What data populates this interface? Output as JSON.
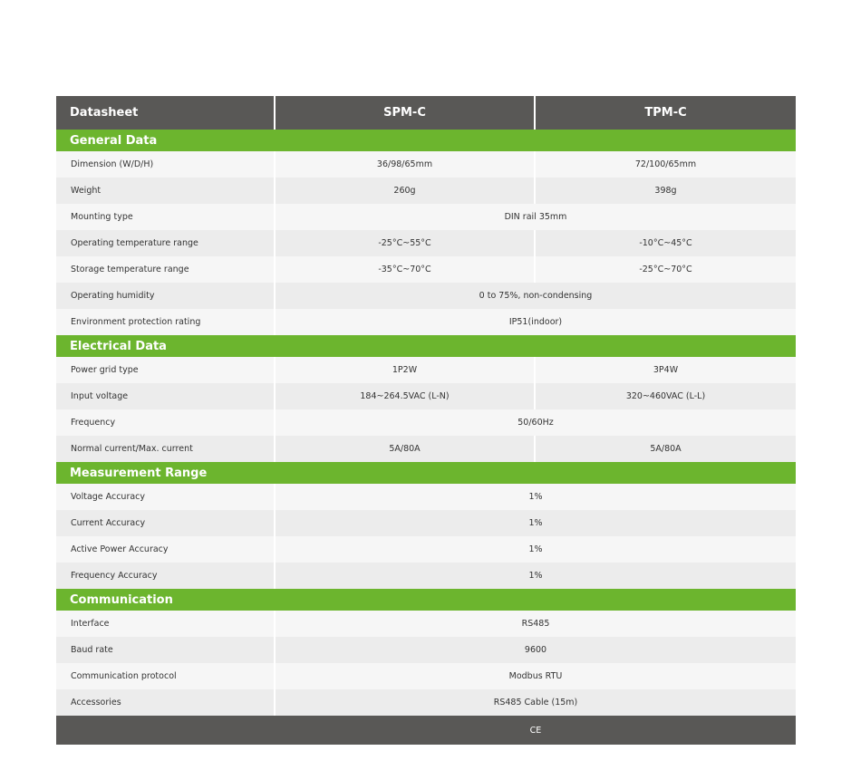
{
  "header": {
    "label": "Datasheet",
    "col1": "SPM-C",
    "col2": "TPM-C"
  },
  "colors": {
    "header": "#595856",
    "section": "#6cb52e"
  },
  "sections": [
    {
      "title": "General Data",
      "rows": [
        {
          "label": "Dimension (W/D/H)",
          "spm": "36/98/65mm",
          "tpm": "72/100/65mm"
        },
        {
          "label": "Weight",
          "spm": "260g",
          "tpm": "398g"
        },
        {
          "label": "Mounting type",
          "both": "DIN rail 35mm"
        },
        {
          "label": "Operating temperature range",
          "spm": "-25°C~55°C",
          "tpm": "-10°C~45°C"
        },
        {
          "label": "Storage temperature range",
          "spm": "-35°C~70°C",
          "tpm": "-25°C~70°C"
        },
        {
          "label": "Operating humidity",
          "both": "0 to 75%, non-condensing"
        },
        {
          "label": "Environment protection rating",
          "both": "IP51(indoor)"
        }
      ]
    },
    {
      "title": "Electrical Data",
      "rows": [
        {
          "label": "Power grid type",
          "spm": "1P2W",
          "tpm": "3P4W"
        },
        {
          "label": "Input voltage",
          "spm": "184~264.5VAC (L-N)",
          "tpm": "320~460VAC (L-L)"
        },
        {
          "label": "Frequency",
          "both": "50/60Hz"
        },
        {
          "label": "Normal current/Max. current",
          "spm": "5A/80A",
          "tpm": "5A/80A"
        }
      ]
    },
    {
      "title": "Measurement Range",
      "rows": [
        {
          "label": "Voltage Accuracy",
          "both": "1%"
        },
        {
          "label": "Current Accuracy",
          "both": "1%"
        },
        {
          "label": "Active Power Accuracy",
          "both": "1%"
        },
        {
          "label": "Frequency Accuracy",
          "both": "1%"
        }
      ]
    },
    {
      "title": "Communication",
      "rows": [
        {
          "label": "Interface",
          "both": "RS485"
        },
        {
          "label": "Baud rate",
          "both": "9600"
        },
        {
          "label": "Communication protocol",
          "both": "Modbus RTU"
        },
        {
          "label": "Accessories",
          "both": "RS485 Cable (15m)"
        }
      ]
    }
  ],
  "footer": "CE"
}
